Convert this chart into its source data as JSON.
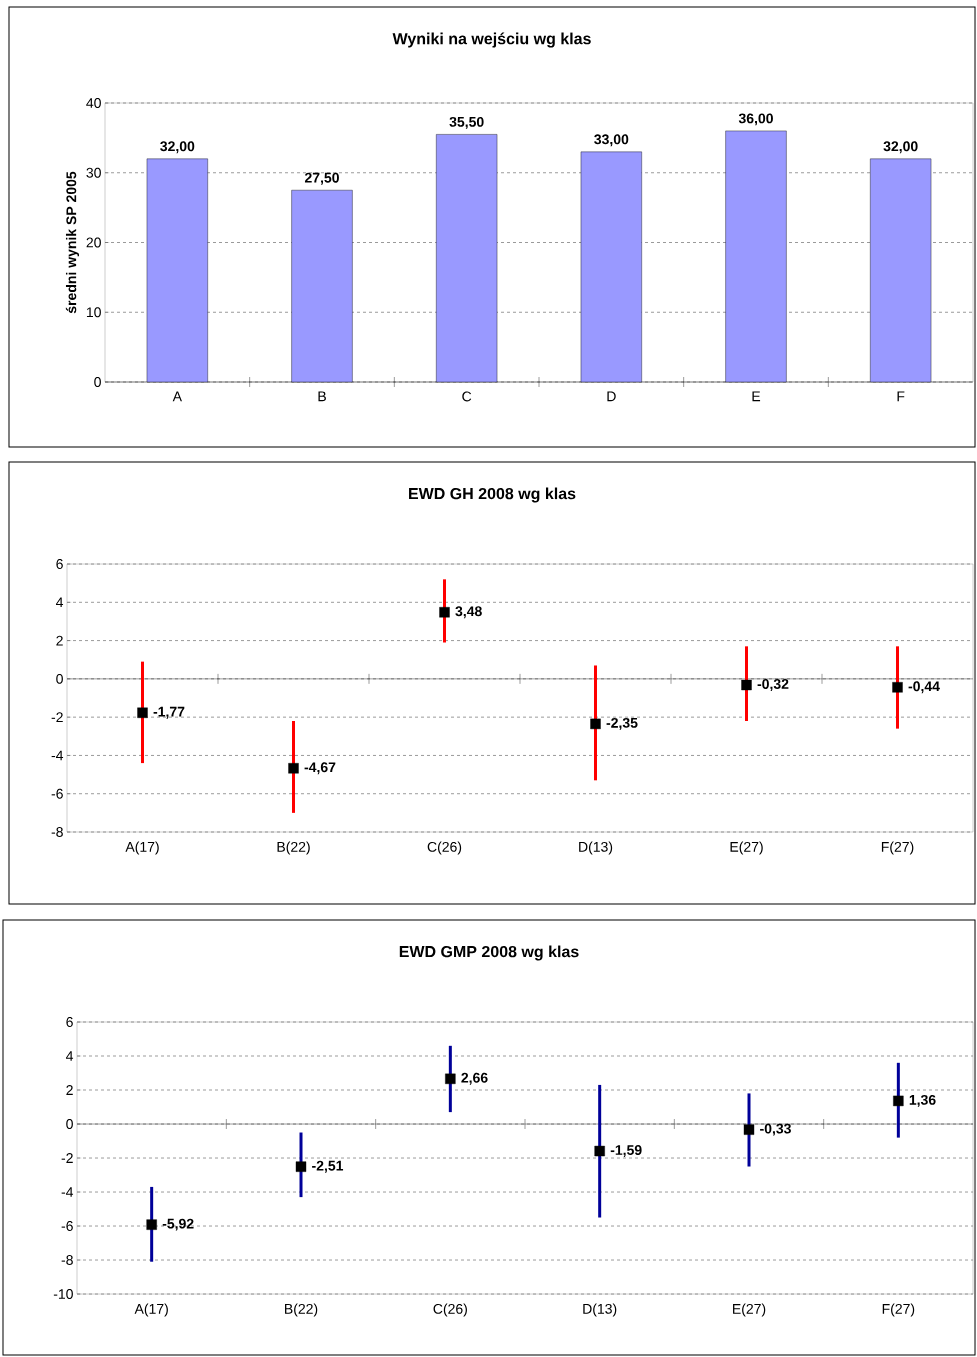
{
  "chart_data": [
    {
      "type": "bar",
      "title": "Wyniki na wejściu wg klas",
      "ylabel": "średni wynik SP 2005",
      "categories": [
        "A",
        "B",
        "C",
        "D",
        "E",
        "F"
      ],
      "values": [
        32,
        27.5,
        35.5,
        33,
        36,
        32
      ],
      "color": "#9999ff",
      "value_labels": [
        "32,00",
        "27,50",
        "35,50",
        "33,00",
        "36,00",
        "32,00"
      ],
      "ylim": [
        0,
        40
      ],
      "yticks": [
        0,
        10,
        20,
        30,
        40
      ],
      "grid": "y"
    },
    {
      "type": "scatter",
      "title": "EWD GH 2008 wg klas",
      "categories": [
        "A(17)",
        "B(22)",
        "C(26)",
        "D(13)",
        "E(27)",
        "F(27)"
      ],
      "values": [
        -1.77,
        -4.67,
        3.48,
        -2.35,
        -0.32,
        -0.44
      ],
      "color": "#000000",
      "marker": "square",
      "errors": [
        [
          -4.4,
          0.9
        ],
        [
          -7.0,
          -2.2
        ],
        [
          1.9,
          5.2
        ],
        [
          -5.3,
          0.7
        ],
        [
          -2.2,
          1.7
        ],
        [
          -2.6,
          1.7
        ]
      ],
      "value_labels": [
        "-1,77",
        "-4,67",
        "3,48",
        "-2,35",
        "-0,32",
        "-0,44"
      ],
      "ylim": [
        -8,
        6
      ],
      "yticks": [
        -8,
        -6,
        -4,
        -2,
        0,
        2,
        4,
        6
      ],
      "grid": "y"
    },
    {
      "type": "scatter",
      "title": "EWD GMP 2008 wg klas",
      "categories": [
        "A(17)",
        "B(22)",
        "C(26)",
        "D(13)",
        "E(27)",
        "F(27)"
      ],
      "values": [
        -5.92,
        -2.51,
        2.66,
        -1.59,
        -0.33,
        1.36
      ],
      "color": "#000000",
      "marker": "square",
      "errors": [
        [
          -8.1,
          -3.7
        ],
        [
          -4.3,
          -0.5
        ],
        [
          0.7,
          4.6
        ],
        [
          -5.5,
          2.3
        ],
        [
          -2.5,
          1.8
        ],
        [
          -0.8,
          3.6
        ]
      ],
      "value_labels": [
        "-5,92",
        "-2,51",
        "2,66",
        "-1,59",
        "-0,33",
        "1,36"
      ],
      "ylim": [
        -10,
        6
      ],
      "yticks": [
        -10,
        -8,
        -6,
        -4,
        -2,
        0,
        2,
        4,
        6
      ],
      "grid": "y"
    }
  ]
}
